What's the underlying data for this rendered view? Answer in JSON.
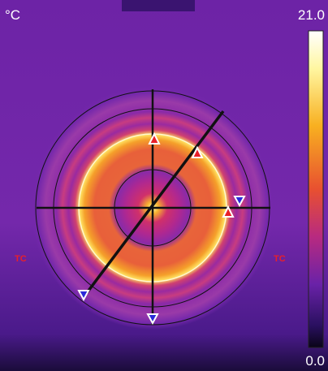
{
  "unit": "°C",
  "scale_max_label": "21.0",
  "scale_min_label": "0.0",
  "markers": {
    "left": "TC",
    "right": "TC"
  }
}
